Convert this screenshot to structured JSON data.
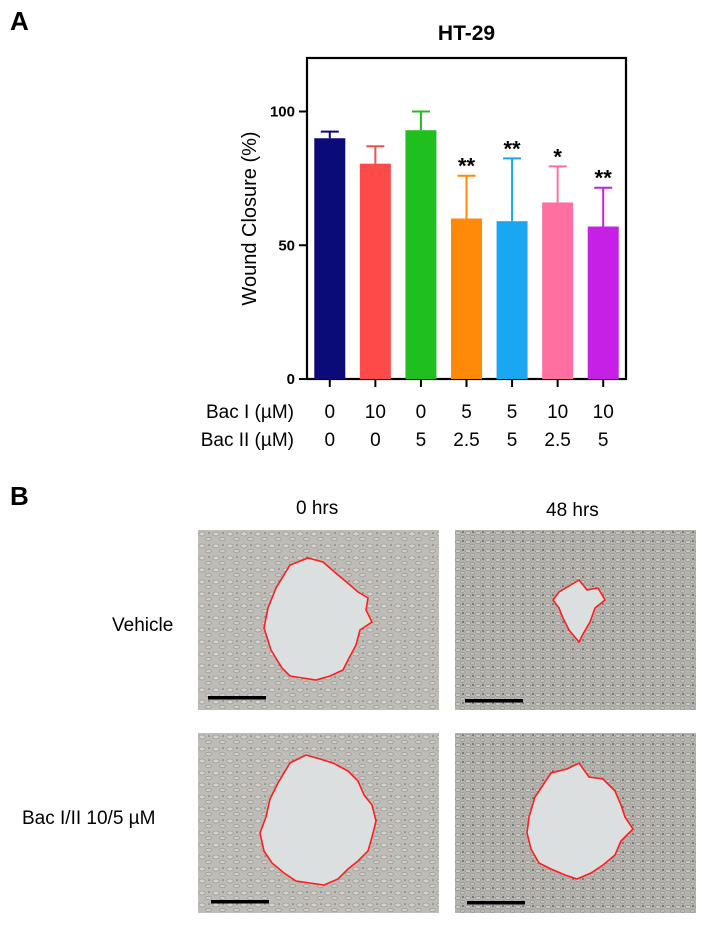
{
  "panel_a_label": "A",
  "panel_b_label": "B",
  "chart_data": {
    "type": "bar",
    "title": "HT-29",
    "ylabel": "Wound Closure (%)",
    "xlabel": "",
    "ylim": [
      0,
      120
    ],
    "yticks": [
      0,
      50,
      100
    ],
    "grid": false,
    "categories": [
      "0 / 0",
      "10 / 0",
      "0 / 5",
      "5 / 2.5",
      "5 / 5",
      "10 / 2.5",
      "10 / 5"
    ],
    "rows": [
      {
        "label": "Bac I  (µM)",
        "values": [
          "0",
          "10",
          "0",
          "5",
          "5",
          "10",
          "10"
        ]
      },
      {
        "label": "Bac II (µM)",
        "values": [
          "0",
          "0",
          "5",
          "2.5",
          "5",
          "2.5",
          "5"
        ]
      }
    ],
    "values": [
      90,
      80.5,
      93,
      60,
      59,
      66,
      57
    ],
    "errors": [
      2.5,
      6.5,
      7,
      16,
      23.5,
      13.5,
      14.5
    ],
    "significance": [
      "",
      "",
      "",
      "**",
      "**",
      "*",
      "**"
    ],
    "colors": [
      "#0a0a78",
      "#ff4a4a",
      "#1fbf1f",
      "#ff8a0a",
      "#1aa6f0",
      "#ff6f9f",
      "#c61fe6"
    ]
  },
  "micrographs": {
    "columns": [
      "0 hrs",
      "48 hrs"
    ],
    "rows": [
      "Vehicle",
      "Bac I/II 10/5 µM"
    ]
  }
}
